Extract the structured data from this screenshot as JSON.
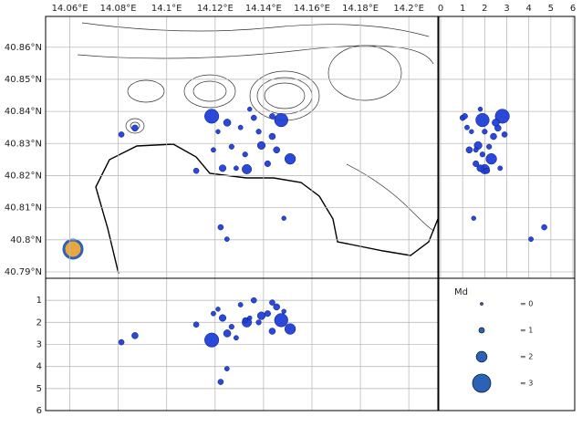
{
  "chart_data": {
    "type": "scatter",
    "color": "#1f3fd6",
    "events": {
      "lon": [
        14.1186,
        14.1473,
        14.0869,
        14.0813,
        14.1223,
        14.1249,
        14.1484,
        14.151,
        14.1331,
        14.1231,
        14.1122,
        14.1391,
        14.1436,
        14.1305,
        14.136,
        14.1268,
        14.1417,
        14.1212,
        14.125,
        14.1324,
        14.1287,
        14.1436,
        14.138,
        14.1454,
        14.1193,
        14.1343
      ],
      "lat": [
        40.8385,
        40.8373,
        40.8348,
        40.8328,
        40.8039,
        40.8002,
        40.8067,
        40.8252,
        40.822,
        40.8223,
        40.8215,
        40.8294,
        40.8322,
        40.835,
        40.838,
        40.829,
        40.8237,
        40.8337,
        40.8365,
        40.8266,
        40.8223,
        40.8385,
        40.8337,
        40.828,
        40.828,
        40.8407
      ],
      "depth": [
        2.8,
        1.9,
        2.6,
        2.9,
        4.7,
        4.1,
        1.5,
        2.3,
        2.0,
        1.8,
        2.1,
        1.7,
        2.4,
        1.2,
        1.0,
        2.2,
        1.6,
        1.4,
        2.5,
        1.9,
        2.7,
        1.1,
        2.0,
        1.3,
        1.6,
        1.8
      ],
      "md": [
        2.5,
        2.4,
        1.2,
        1.0,
        1.0,
        0.8,
        0.7,
        2.0,
        1.8,
        1.3,
        1.0,
        1.5,
        1.2,
        0.8,
        1.0,
        0.9,
        1.1,
        0.7,
        1.4,
        0.9,
        0.8,
        1.0,
        0.9,
        1.2,
        0.8,
        0.7
      ]
    },
    "map": {
      "xlim": [
        14.05,
        14.212
      ],
      "ylim": [
        40.788,
        40.8696
      ],
      "xticks": [
        {
          "value": 14.06,
          "label": "14.06°E"
        },
        {
          "value": 14.08,
          "label": "14.08°E"
        },
        {
          "value": 14.1,
          "label": "14.1°E"
        },
        {
          "value": 14.12,
          "label": "14.12°E"
        },
        {
          "value": 14.14,
          "label": "14.14°E"
        },
        {
          "value": 14.16,
          "label": "14.16°E"
        },
        {
          "value": 14.18,
          "label": "14.18°E"
        },
        {
          "value": 14.2,
          "label": "14.2°E"
        }
      ],
      "yticks": [
        {
          "value": 40.86,
          "label": "40.86°N"
        },
        {
          "value": 40.85,
          "label": "40.85°N"
        },
        {
          "value": 40.84,
          "label": "40.84°N"
        },
        {
          "value": 40.83,
          "label": "40.83°N"
        },
        {
          "value": 40.82,
          "label": "40.82°N"
        },
        {
          "value": 40.81,
          "label": "40.81°N"
        },
        {
          "value": 40.8,
          "label": "40.8°N"
        },
        {
          "value": 40.79,
          "label": "40.79°N"
        }
      ]
    },
    "side": {
      "xlim": [
        0,
        6
      ],
      "xticks": [
        0,
        1,
        2,
        3,
        4,
        5,
        6
      ]
    },
    "bottom": {
      "ylim": [
        0,
        6
      ],
      "yticks": [
        1,
        2,
        3,
        4,
        5,
        6
      ]
    },
    "legend": {
      "title": "Md",
      "entries": [
        {
          "value": 0,
          "label": "= 0"
        },
        {
          "value": 1,
          "label": "= 1"
        },
        {
          "value": 2,
          "label": "= 2"
        },
        {
          "value": 3,
          "label": "= 3"
        }
      ]
    }
  }
}
